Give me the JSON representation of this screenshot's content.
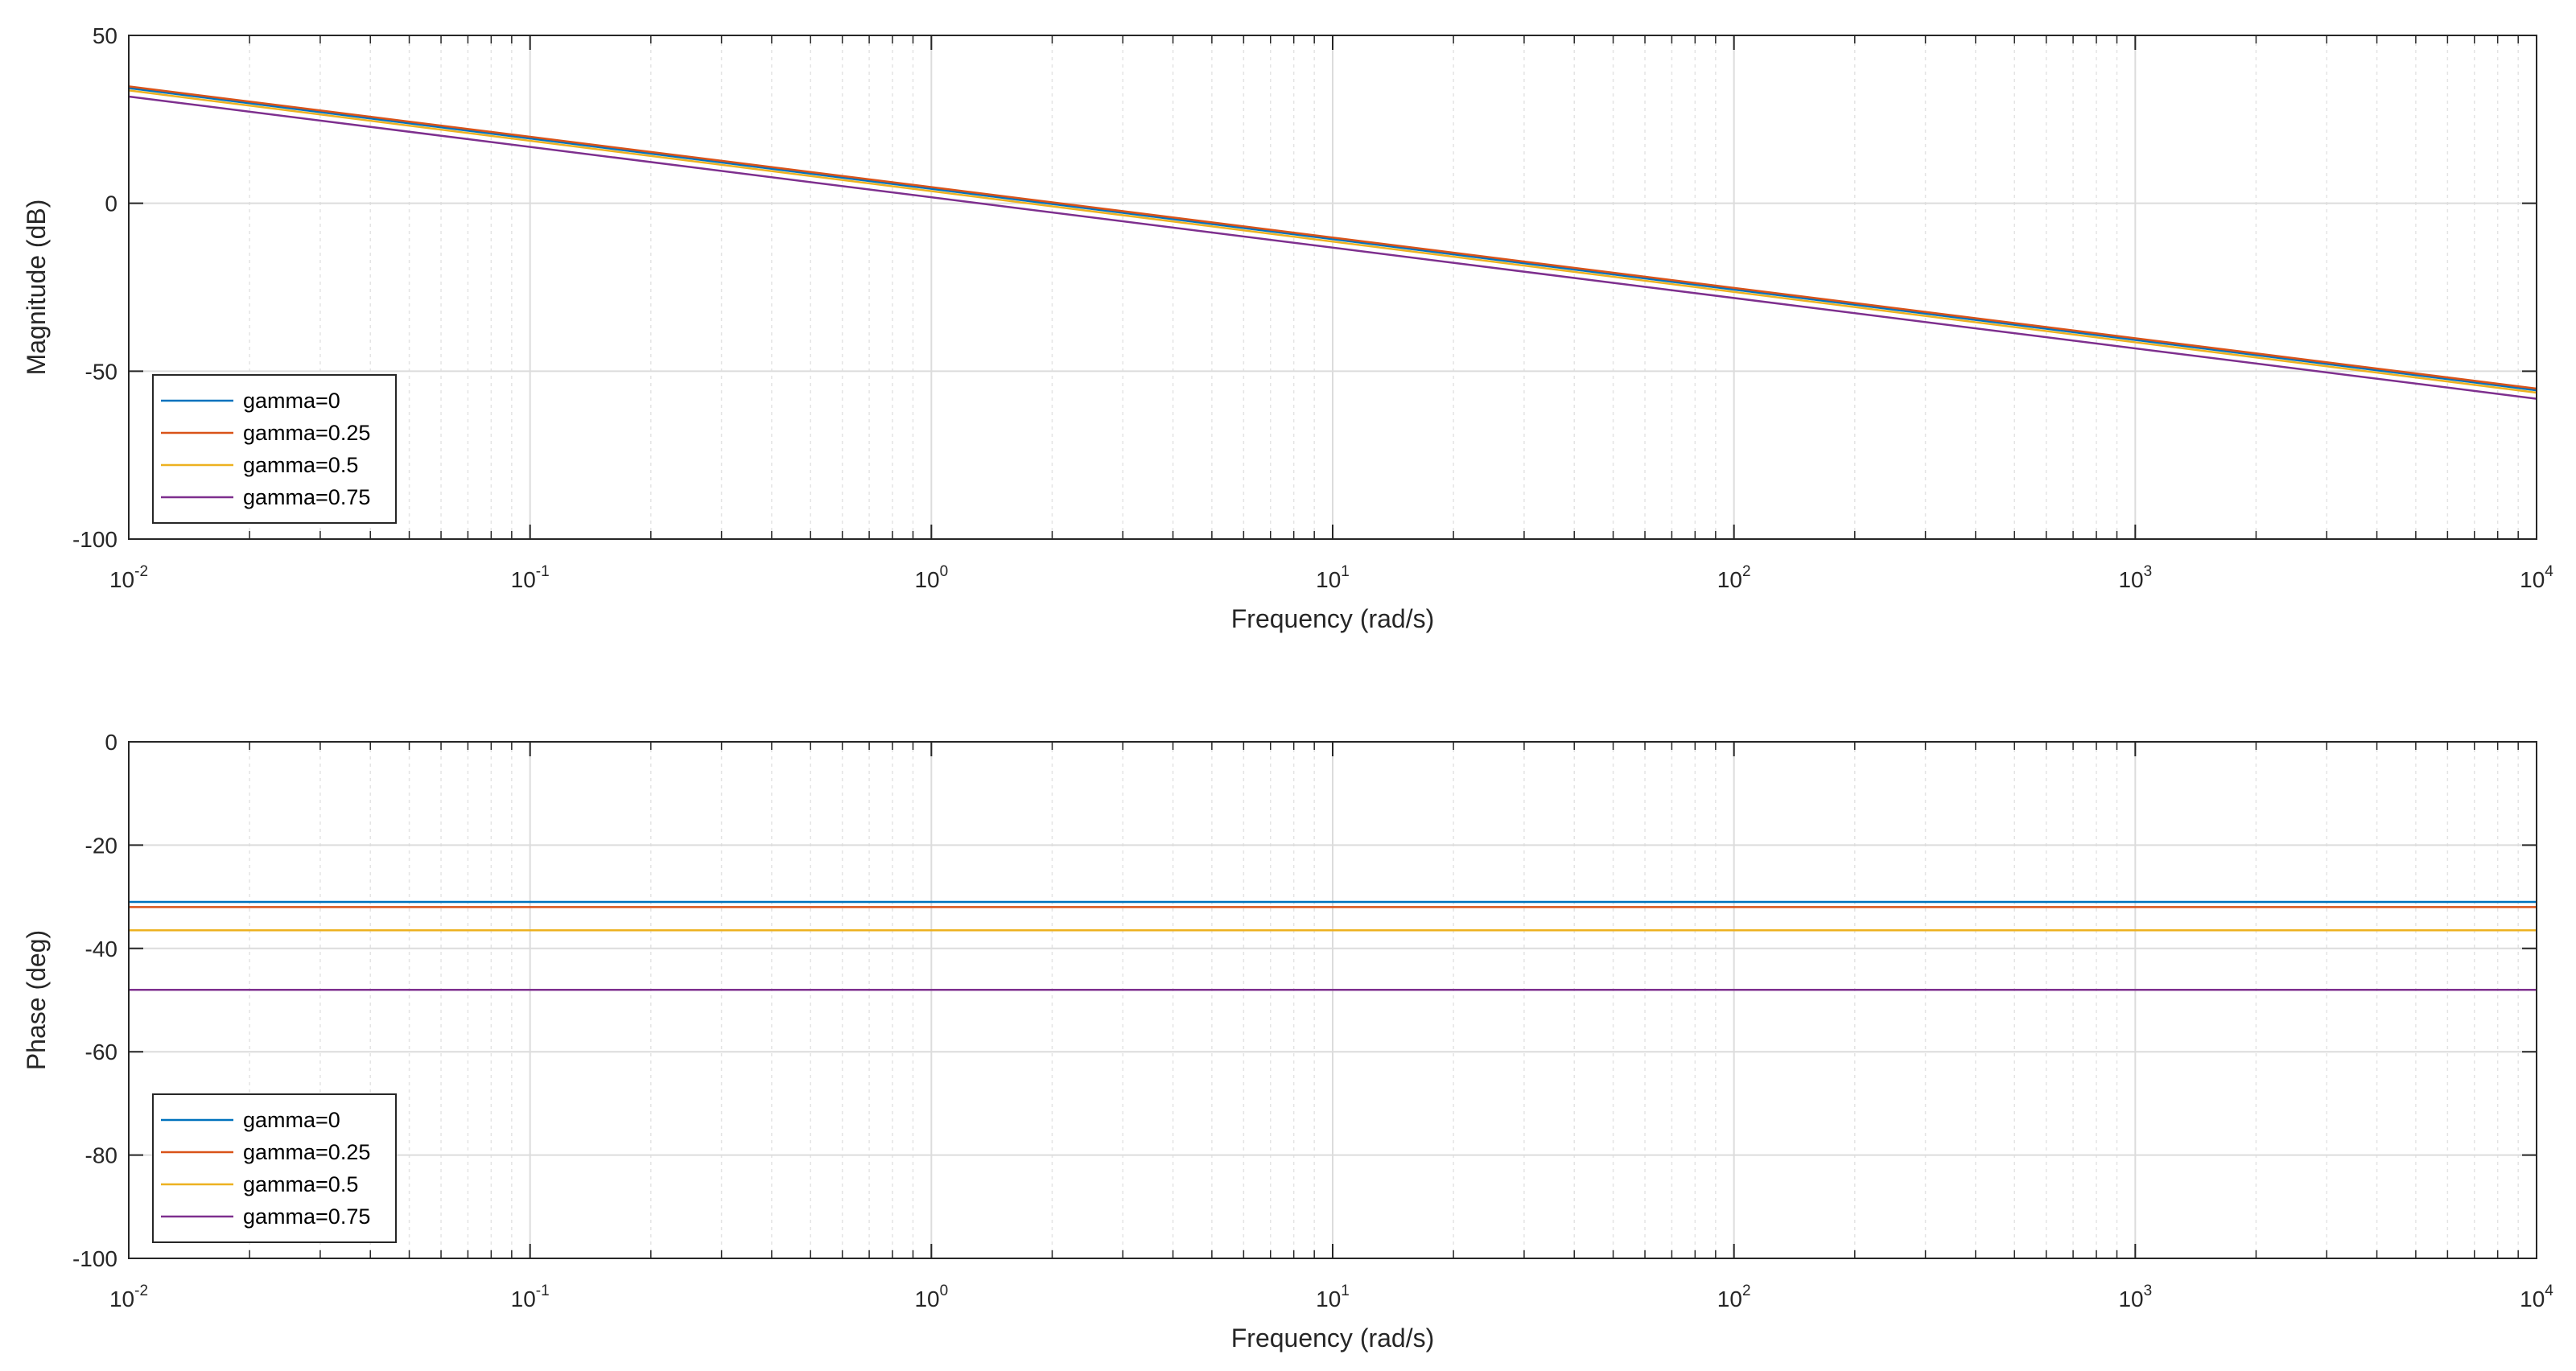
{
  "chart_data": [
    {
      "type": "line",
      "xscale": "log",
      "xlim": [
        0.01,
        10000
      ],
      "ylim": [
        -100,
        50
      ],
      "xticks": [
        0.01,
        0.1,
        1,
        10,
        100,
        1000,
        10000
      ],
      "xtick_labels": [
        {
          "base": "10",
          "exp": "-2"
        },
        {
          "base": "10",
          "exp": "-1"
        },
        {
          "base": "10",
          "exp": "0"
        },
        {
          "base": "10",
          "exp": "1"
        },
        {
          "base": "10",
          "exp": "2"
        },
        {
          "base": "10",
          "exp": "3"
        },
        {
          "base": "10",
          "exp": "4"
        }
      ],
      "yticks": [
        -100,
        -50,
        0,
        50
      ],
      "ytick_labels": [
        "-100",
        "-50",
        "0",
        "50"
      ],
      "xlabel": "Frequency  (rad/s)",
      "ylabel": "Magnitude (dB)",
      "grid": true,
      "minor_grid": true,
      "legend_position": "bottom-left",
      "series": [
        {
          "name": "gamma=0",
          "color": "#0072BD",
          "x": [
            0.01,
            10000
          ],
          "y": [
            34.3,
            -55.7
          ]
        },
        {
          "name": "gamma=0.25",
          "color": "#D95319",
          "x": [
            0.01,
            10000
          ],
          "y": [
            34.8,
            -55.2
          ]
        },
        {
          "name": "gamma=0.5",
          "color": "#EDB120",
          "x": [
            0.01,
            10000
          ],
          "y": [
            33.6,
            -56.4
          ]
        },
        {
          "name": "gamma=0.75",
          "color": "#7E2F8E",
          "x": [
            0.01,
            10000
          ],
          "y": [
            31.8,
            -58.2
          ]
        }
      ]
    },
    {
      "type": "line",
      "xscale": "log",
      "xlim": [
        0.01,
        10000
      ],
      "ylim": [
        -100,
        0
      ],
      "xticks": [
        0.01,
        0.1,
        1,
        10,
        100,
        1000,
        10000
      ],
      "xtick_labels": [
        {
          "base": "10",
          "exp": "-2"
        },
        {
          "base": "10",
          "exp": "-1"
        },
        {
          "base": "10",
          "exp": "0"
        },
        {
          "base": "10",
          "exp": "1"
        },
        {
          "base": "10",
          "exp": "2"
        },
        {
          "base": "10",
          "exp": "3"
        },
        {
          "base": "10",
          "exp": "4"
        }
      ],
      "yticks": [
        -100,
        -80,
        -60,
        -40,
        -20,
        0
      ],
      "ytick_labels": [
        "-100",
        "-80",
        "-60",
        "-40",
        "-20",
        "0"
      ],
      "xlabel": "Frequency  (rad/s)",
      "ylabel": "Phase (deg)",
      "grid": true,
      "minor_grid": true,
      "legend_position": "bottom-left",
      "series": [
        {
          "name": "gamma=0",
          "color": "#0072BD",
          "x": [
            0.01,
            10000
          ],
          "y": [
            -31,
            -31
          ]
        },
        {
          "name": "gamma=0.25",
          "color": "#D95319",
          "x": [
            0.01,
            10000
          ],
          "y": [
            -32,
            -32
          ]
        },
        {
          "name": "gamma=0.5",
          "color": "#EDB120",
          "x": [
            0.01,
            10000
          ],
          "y": [
            -36.5,
            -36.5
          ]
        },
        {
          "name": "gamma=0.75",
          "color": "#7E2F8E",
          "x": [
            0.01,
            10000
          ],
          "y": [
            -48,
            -48
          ]
        }
      ]
    }
  ]
}
